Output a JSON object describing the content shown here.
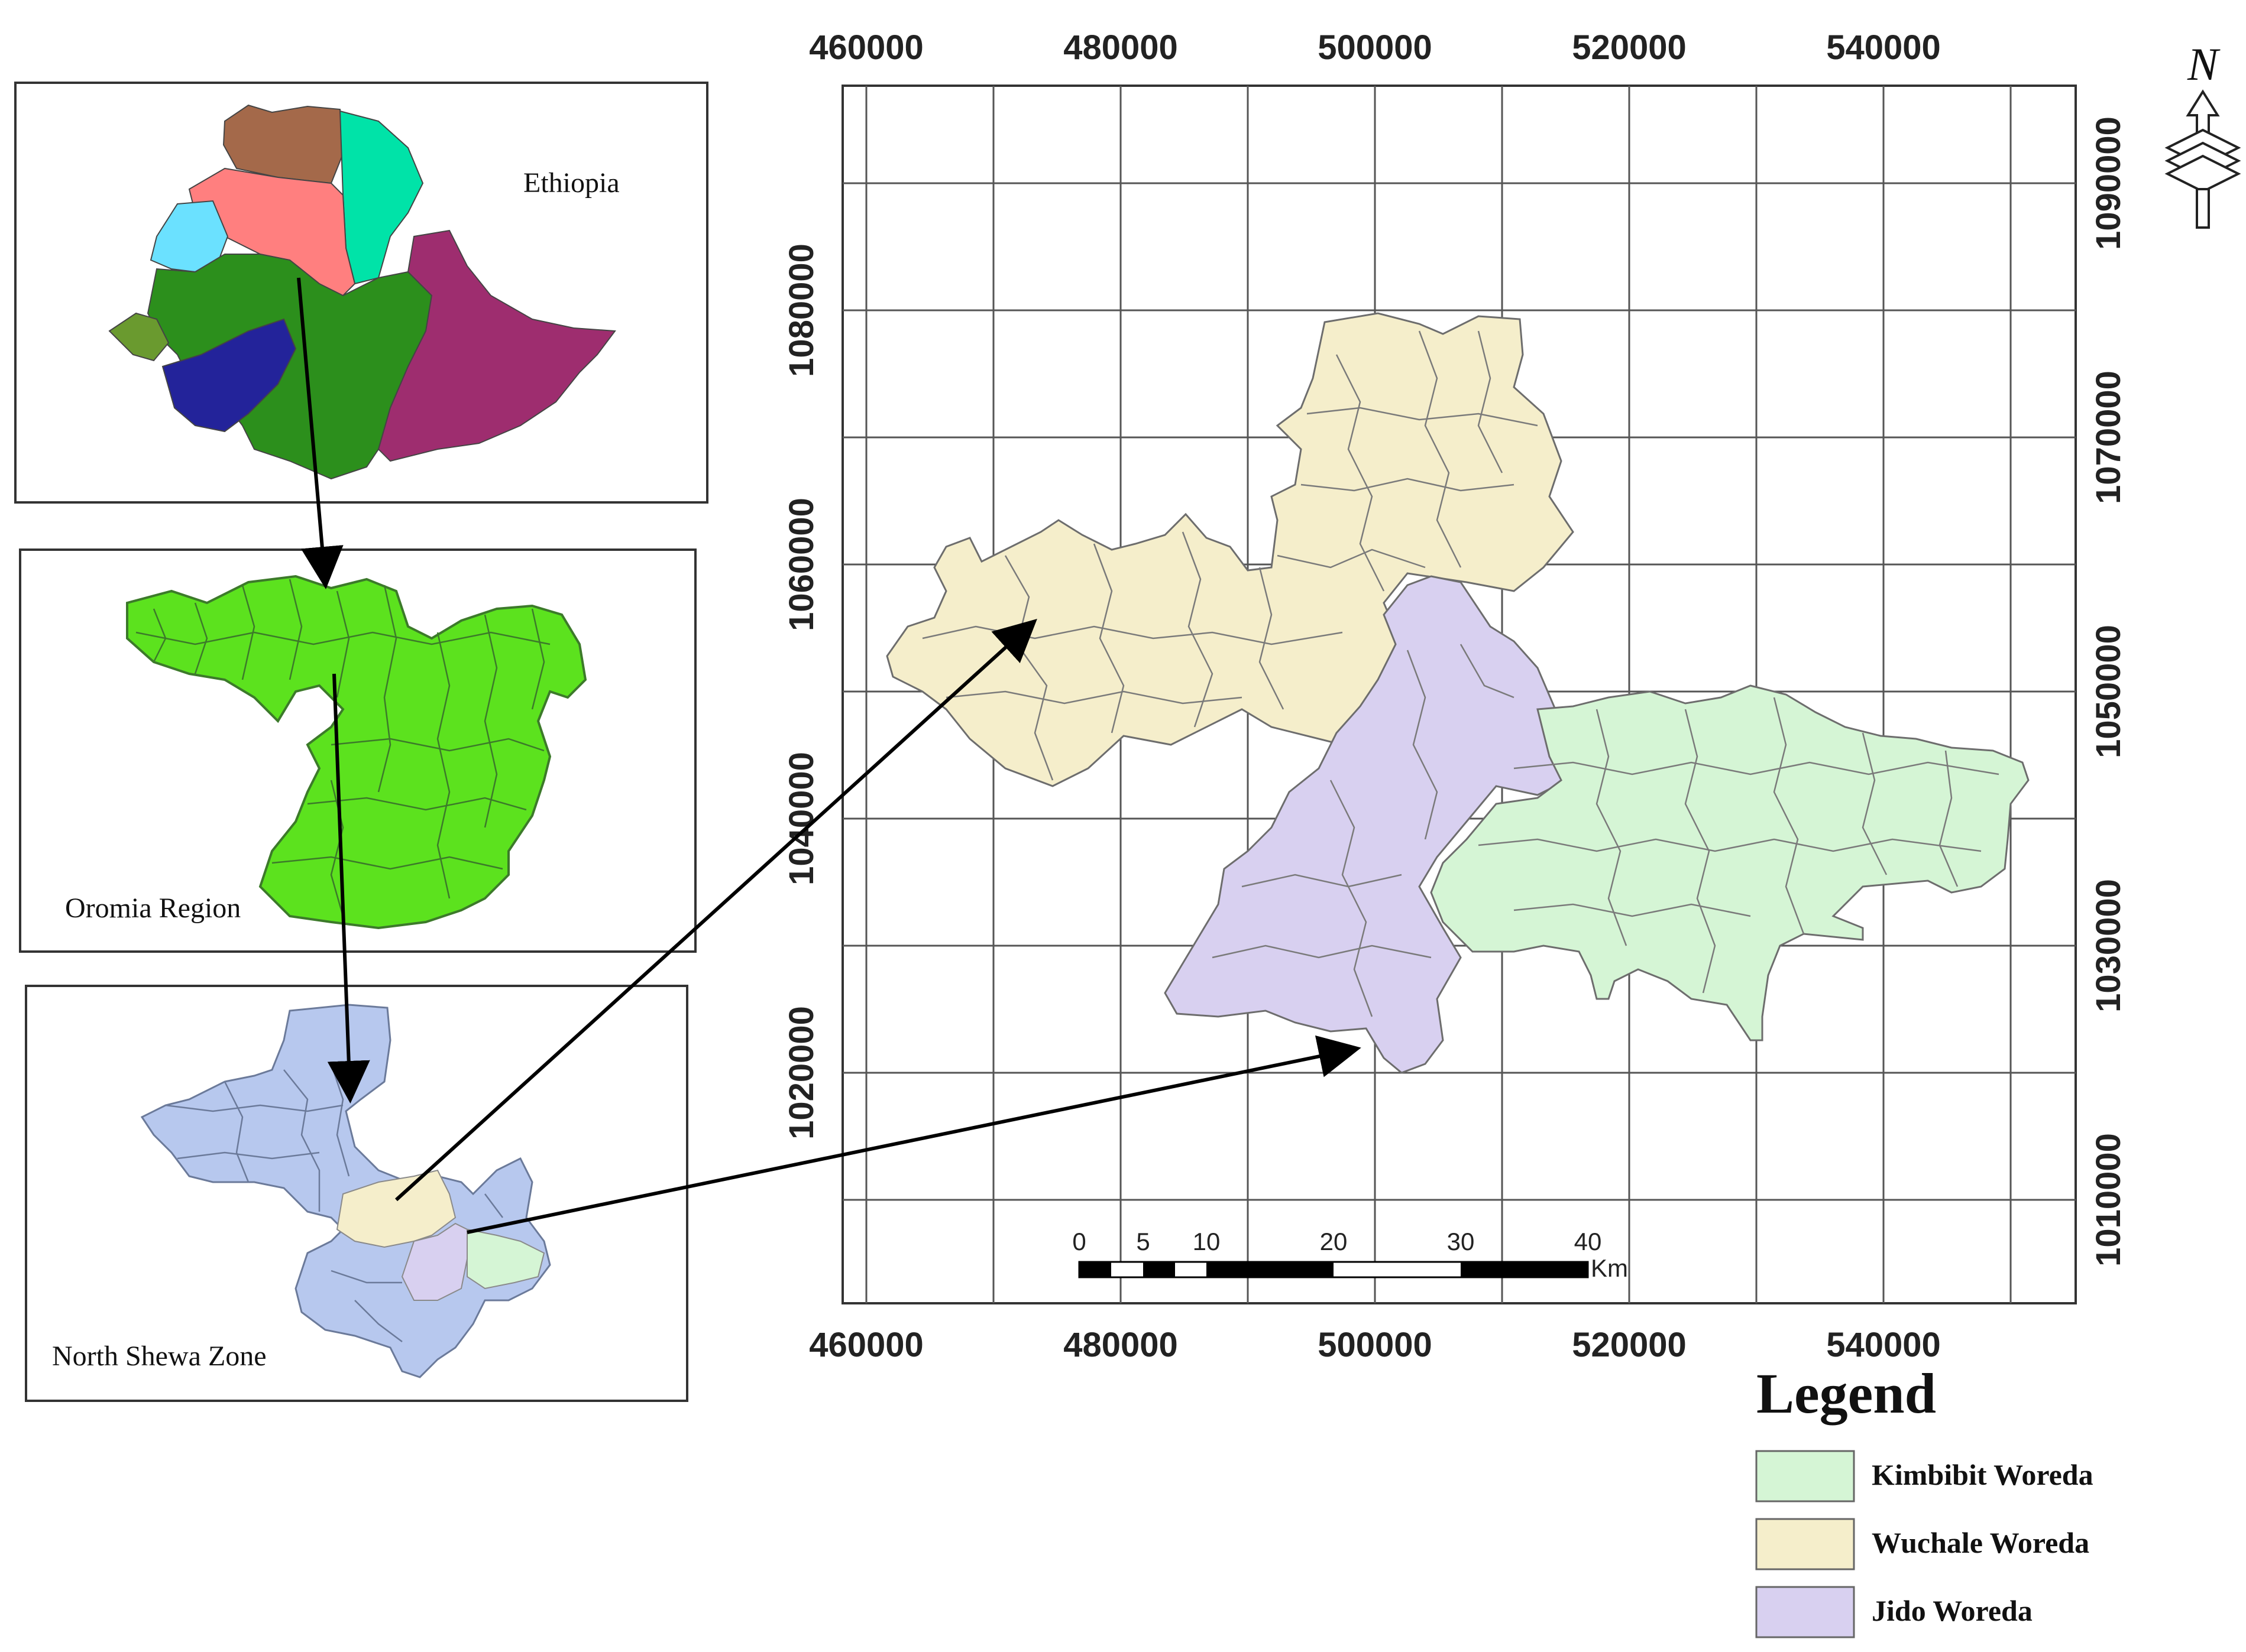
{
  "map": {
    "x_ticks": [
      "460000",
      "480000",
      "500000",
      "520000",
      "540000"
    ],
    "y_ticks_left": [
      "1020000",
      "1040000",
      "1060000",
      "1080000"
    ],
    "y_ticks_right": [
      "1010000",
      "1030000",
      "1050000",
      "1070000",
      "1090000"
    ],
    "north_label": "N",
    "scalebar": {
      "ticks": [
        "0",
        "5",
        "10",
        "20",
        "30",
        "40"
      ],
      "unit": "Km"
    }
  },
  "insets": {
    "ethiopia": "Ethiopia",
    "oromia": "Oromia Region",
    "north_shewa": "North Shewa Zone"
  },
  "legend": {
    "title": "Legend",
    "items": [
      {
        "label": "Kimbibit Woreda",
        "color": "#d5f5d5"
      },
      {
        "label": "Wuchale Woreda",
        "color": "#f5eecb"
      },
      {
        "label": "Jido Woreda",
        "color": "#d8d0f0"
      }
    ]
  },
  "colors": {
    "grid": "#555555",
    "oromia_fill": "#5ce21e",
    "north_shewa_fill": "#b7c8ee",
    "ethiopia_regions": [
      "#a4694a",
      "#00e3a8",
      "#ff7f7f",
      "#6be1ff",
      "#2c8f1c",
      "#6a9a2f",
      "#23239a",
      "#9e2d6f"
    ]
  }
}
